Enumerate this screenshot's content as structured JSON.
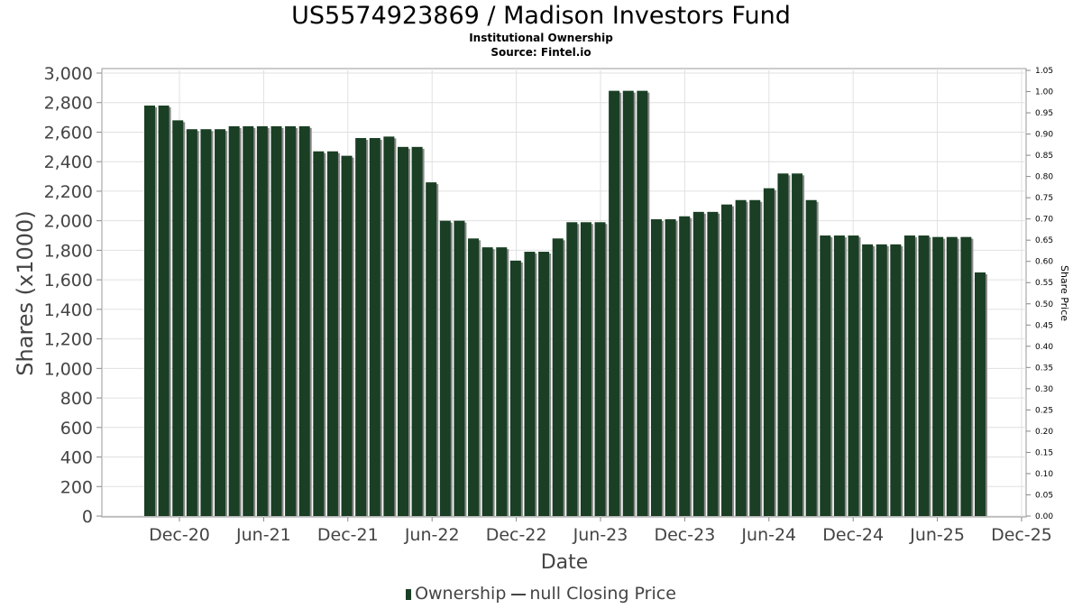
{
  "chart_data": {
    "type": "bar",
    "title": "US5574923869 / Madison Investors Fund",
    "subtitle": "Institutional Ownership",
    "source": "Source: Fintel.io",
    "xlabel": "Date",
    "ylabel": "Shares (x1000)",
    "y2label": "Share Price",
    "ylim": [
      0,
      3000
    ],
    "y2lim": [
      0,
      1.05
    ],
    "yticks": [
      "0",
      "200",
      "400",
      "600",
      "800",
      "1,000",
      "1,200",
      "1,400",
      "1,600",
      "1,800",
      "2,000",
      "2,200",
      "2,400",
      "2,600",
      "2,800",
      "3,000"
    ],
    "y2ticks": [
      "0.00",
      "0.05",
      "0.10",
      "0.15",
      "0.20",
      "0.25",
      "0.30",
      "0.35",
      "0.40",
      "0.45",
      "0.50",
      "0.55",
      "0.60",
      "0.65",
      "0.70",
      "0.75",
      "0.80",
      "0.85",
      "0.90",
      "0.95",
      "1.00",
      "1.05"
    ],
    "xticks": [
      "Dec-20",
      "Jun-21",
      "Dec-21",
      "Jun-22",
      "Dec-22",
      "Jun-23",
      "Dec-23",
      "Jun-24",
      "Dec-24",
      "Jun-25",
      "Dec-25"
    ],
    "grid": true,
    "legend_position": "bottom",
    "series": [
      {
        "name": "Ownership",
        "color": "#1a3f24",
        "values": [
          2780,
          2780,
          2680,
          2620,
          2620,
          2620,
          2640,
          2640,
          2640,
          2640,
          2640,
          2640,
          2470,
          2470,
          2440,
          2560,
          2560,
          2570,
          2500,
          2500,
          2260,
          2000,
          2000,
          1880,
          1820,
          1820,
          1730,
          1790,
          1790,
          1880,
          1990,
          1990,
          1990,
          2880,
          2880,
          2880,
          2010,
          2010,
          2030,
          2060,
          2060,
          2110,
          2140,
          2140,
          2220,
          2320,
          2320,
          2140,
          1900,
          1900,
          1900,
          1840,
          1840,
          1840,
          1900,
          1900,
          1890,
          1890,
          1890,
          1650
        ]
      },
      {
        "name": "null Closing Price",
        "color": "#444444",
        "values": []
      }
    ]
  },
  "legend": {
    "ownership": "Ownership",
    "price": "null Closing Price"
  }
}
